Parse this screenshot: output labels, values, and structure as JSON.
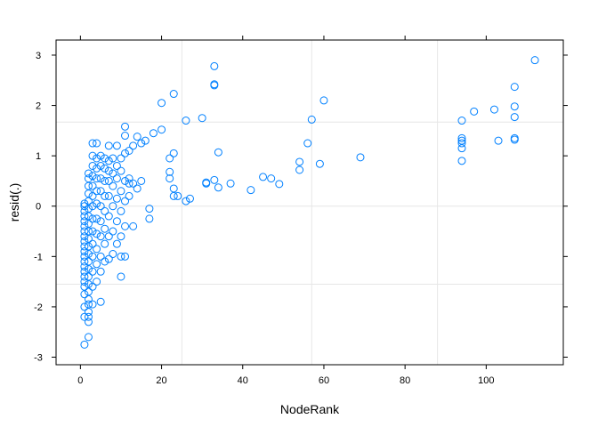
{
  "chart_data": {
    "type": "scatter",
    "xlabel": "NodeRank",
    "ylabel": "resid(.)",
    "xlim": [
      -6,
      119
    ],
    "ylim": [
      -3.15,
      3.3
    ],
    "x_ticks": [
      0,
      20,
      40,
      60,
      80,
      100
    ],
    "y_ticks": [
      -3,
      -2,
      -1,
      0,
      1,
      2,
      3
    ],
    "grid": true,
    "ref_lines": {
      "x": [
        25,
        57,
        88
      ],
      "y": [
        -1.55,
        0,
        1.67
      ]
    },
    "marker": {
      "shape": "open-circle",
      "color": "#0080ff"
    },
    "points": [
      [
        1,
        -2.75
      ],
      [
        1,
        -2.2
      ],
      [
        1,
        -2.0
      ],
      [
        1,
        -1.75
      ],
      [
        1,
        -1.6
      ],
      [
        1,
        -1.5
      ],
      [
        1,
        -1.4
      ],
      [
        1,
        -1.3
      ],
      [
        1,
        -1.2
      ],
      [
        1,
        -1.1
      ],
      [
        1,
        -1.0
      ],
      [
        1,
        -0.9
      ],
      [
        1,
        -0.8
      ],
      [
        1,
        -0.7
      ],
      [
        1,
        -0.6
      ],
      [
        1,
        -0.5
      ],
      [
        1,
        -0.4
      ],
      [
        1,
        -0.3
      ],
      [
        1,
        -0.2
      ],
      [
        1,
        -0.1
      ],
      [
        1,
        0.0
      ],
      [
        1,
        0.05
      ],
      [
        2,
        -2.6
      ],
      [
        2,
        -2.3
      ],
      [
        2,
        -2.2
      ],
      [
        2,
        -2.1
      ],
      [
        2,
        -1.95
      ],
      [
        2,
        -1.85
      ],
      [
        2,
        -1.7
      ],
      [
        2,
        -1.55
      ],
      [
        2,
        -1.4
      ],
      [
        2,
        -1.25
      ],
      [
        2,
        -1.1
      ],
      [
        2,
        -0.95
      ],
      [
        2,
        -0.8
      ],
      [
        2,
        -0.65
      ],
      [
        2,
        -0.5
      ],
      [
        2,
        -0.35
      ],
      [
        2,
        -0.2
      ],
      [
        2,
        -0.05
      ],
      [
        2,
        0.1
      ],
      [
        2,
        0.25
      ],
      [
        2,
        0.4
      ],
      [
        2,
        0.55
      ],
      [
        2,
        0.65
      ],
      [
        3,
        -1.95
      ],
      [
        3,
        -1.6
      ],
      [
        3,
        -1.3
      ],
      [
        3,
        -1.0
      ],
      [
        3,
        -0.75
      ],
      [
        3,
        -0.5
      ],
      [
        3,
        -0.25
      ],
      [
        3,
        0.0
      ],
      [
        3,
        0.2
      ],
      [
        3,
        0.4
      ],
      [
        3,
        0.6
      ],
      [
        3,
        0.8
      ],
      [
        3,
        1.0
      ],
      [
        3,
        1.25
      ],
      [
        4,
        -1.5
      ],
      [
        4,
        -1.15
      ],
      [
        4,
        -0.85
      ],
      [
        4,
        -0.55
      ],
      [
        4,
        -0.25
      ],
      [
        4,
        0.05
      ],
      [
        4,
        0.3
      ],
      [
        4,
        0.55
      ],
      [
        4,
        0.75
      ],
      [
        4,
        0.95
      ],
      [
        4,
        1.25
      ],
      [
        5,
        -1.9
      ],
      [
        5,
        -1.3
      ],
      [
        5,
        -1.0
      ],
      [
        5,
        -0.6
      ],
      [
        5,
        -0.3
      ],
      [
        5,
        0.0
      ],
      [
        5,
        0.3
      ],
      [
        5,
        0.55
      ],
      [
        5,
        0.8
      ],
      [
        5,
        1.0
      ],
      [
        6,
        -1.1
      ],
      [
        6,
        -0.75
      ],
      [
        6,
        -0.45
      ],
      [
        6,
        -0.1
      ],
      [
        6,
        0.2
      ],
      [
        6,
        0.5
      ],
      [
        6,
        0.75
      ],
      [
        6,
        0.95
      ],
      [
        7,
        -1.05
      ],
      [
        7,
        -0.6
      ],
      [
        7,
        -0.2
      ],
      [
        7,
        0.2
      ],
      [
        7,
        0.5
      ],
      [
        7,
        0.7
      ],
      [
        7,
        0.9
      ],
      [
        7,
        1.2
      ],
      [
        8,
        -0.95
      ],
      [
        8,
        -0.5
      ],
      [
        8,
        0.0
      ],
      [
        8,
        0.4
      ],
      [
        8,
        0.65
      ],
      [
        8,
        0.95
      ],
      [
        9,
        -0.75
      ],
      [
        9,
        -0.3
      ],
      [
        9,
        0.15
      ],
      [
        9,
        0.55
      ],
      [
        9,
        0.8
      ],
      [
        9,
        1.2
      ],
      [
        10,
        -1.4
      ],
      [
        10,
        -1.0
      ],
      [
        10,
        -0.6
      ],
      [
        10,
        -0.1
      ],
      [
        10,
        0.3
      ],
      [
        10,
        0.7
      ],
      [
        10,
        0.95
      ],
      [
        11,
        -1.0
      ],
      [
        11,
        -0.4
      ],
      [
        11,
        0.1
      ],
      [
        11,
        0.5
      ],
      [
        11,
        1.05
      ],
      [
        11,
        1.4
      ],
      [
        11,
        1.58
      ],
      [
        12,
        0.2
      ],
      [
        12,
        0.45
      ],
      [
        12,
        0.55
      ],
      [
        12,
        1.1
      ],
      [
        13,
        -0.4
      ],
      [
        13,
        0.45
      ],
      [
        13,
        1.2
      ],
      [
        14,
        0.35
      ],
      [
        14,
        1.38
      ],
      [
        15,
        0.5
      ],
      [
        15,
        1.25
      ],
      [
        16,
        1.3
      ],
      [
        17,
        -0.25
      ],
      [
        17,
        -0.05
      ],
      [
        18,
        1.45
      ],
      [
        20,
        2.05
      ],
      [
        20,
        1.52
      ],
      [
        22,
        0.55
      ],
      [
        22,
        0.68
      ],
      [
        22,
        0.95
      ],
      [
        23,
        2.23
      ],
      [
        23,
        1.05
      ],
      [
        23,
        0.35
      ],
      [
        23,
        0.2
      ],
      [
        24,
        0.2
      ],
      [
        26,
        1.7
      ],
      [
        26,
        0.1
      ],
      [
        27,
        0.15
      ],
      [
        30,
        1.75
      ],
      [
        31,
        0.45
      ],
      [
        31,
        0.47
      ],
      [
        33,
        2.78
      ],
      [
        33,
        2.42
      ],
      [
        33,
        2.4
      ],
      [
        33,
        0.52
      ],
      [
        34,
        1.07
      ],
      [
        34,
        0.37
      ],
      [
        37,
        0.45
      ],
      [
        42,
        0.32
      ],
      [
        45,
        0.58
      ],
      [
        47,
        0.55
      ],
      [
        49,
        0.44
      ],
      [
        54,
        0.88
      ],
      [
        54,
        0.72
      ],
      [
        56,
        1.25
      ],
      [
        57,
        1.72
      ],
      [
        59,
        0.84
      ],
      [
        60,
        2.1
      ],
      [
        69,
        0.97
      ],
      [
        94,
        1.7
      ],
      [
        94,
        1.35
      ],
      [
        94,
        1.3
      ],
      [
        94,
        1.25
      ],
      [
        94,
        1.15
      ],
      [
        94,
        0.9
      ],
      [
        97,
        1.88
      ],
      [
        102,
        1.92
      ],
      [
        103,
        1.3
      ],
      [
        107,
        2.37
      ],
      [
        107,
        1.98
      ],
      [
        107,
        1.77
      ],
      [
        107,
        1.35
      ],
      [
        107,
        1.32
      ],
      [
        112,
        2.9
      ]
    ]
  }
}
